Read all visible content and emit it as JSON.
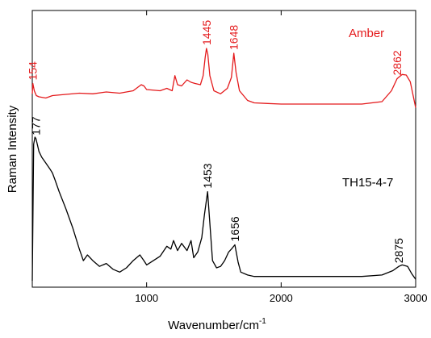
{
  "chart_data": {
    "type": "line",
    "xlabel": "Wavenumber/cm",
    "xlabel_superscript": "-1",
    "ylabel": "Raman Intensity",
    "xlim": [
      150,
      3000
    ],
    "xticks": [
      1000,
      2000,
      3000
    ],
    "xtick_labels": [
      "1000",
      "2000",
      "3000"
    ],
    "y_ticks_shown": false,
    "grid": false,
    "colors": {
      "Amber": "#e41a1c",
      "TH15-4-7": "#000000"
    },
    "series": [
      {
        "name": "Amber",
        "color": "#e41a1c",
        "label_position": "top-right",
        "y_unit": "a.u.",
        "x": [
          150,
          154,
          165,
          180,
          200,
          250,
          300,
          400,
          500,
          600,
          700,
          800,
          900,
          960,
          980,
          1000,
          1100,
          1150,
          1190,
          1210,
          1230,
          1260,
          1300,
          1330,
          1360,
          1400,
          1420,
          1435,
          1445,
          1455,
          1470,
          1500,
          1550,
          1600,
          1630,
          1648,
          1665,
          1690,
          1750,
          1800,
          1900,
          2000,
          2200,
          2400,
          2600,
          2750,
          2820,
          2862,
          2900,
          2930,
          2960,
          3000
        ],
        "y": [
          0.25,
          0.42,
          0.3,
          0.22,
          0.2,
          0.18,
          0.22,
          0.24,
          0.26,
          0.25,
          0.28,
          0.26,
          0.3,
          0.4,
          0.38,
          0.32,
          0.3,
          0.34,
          0.3,
          0.55,
          0.4,
          0.38,
          0.48,
          0.44,
          0.42,
          0.4,
          0.55,
          0.85,
          1.0,
          0.9,
          0.55,
          0.3,
          0.25,
          0.34,
          0.52,
          0.92,
          0.6,
          0.3,
          0.14,
          0.1,
          0.09,
          0.08,
          0.08,
          0.08,
          0.08,
          0.12,
          0.3,
          0.5,
          0.57,
          0.56,
          0.45,
          0.02
        ]
      },
      {
        "name": "TH15-4-7",
        "color": "#000000",
        "label_position": "middle-right",
        "y_unit": "a.u.",
        "x": [
          150,
          160,
          170,
          177,
          185,
          200,
          220,
          250,
          280,
          300,
          320,
          350,
          400,
          450,
          500,
          530,
          560,
          600,
          650,
          700,
          750,
          800,
          850,
          900,
          950,
          980,
          1000,
          1050,
          1100,
          1150,
          1180,
          1200,
          1230,
          1260,
          1300,
          1330,
          1350,
          1380,
          1410,
          1430,
          1453,
          1470,
          1490,
          1520,
          1550,
          1580,
          1610,
          1630,
          1656,
          1680,
          1700,
          1750,
          1800,
          1900,
          2000,
          2200,
          2400,
          2600,
          2750,
          2830,
          2875,
          2900,
          2940,
          2970,
          3000
        ],
        "y": [
          0.0,
          0.95,
          1.0,
          0.99,
          0.96,
          0.9,
          0.86,
          0.82,
          0.78,
          0.75,
          0.7,
          0.62,
          0.5,
          0.37,
          0.22,
          0.14,
          0.18,
          0.14,
          0.1,
          0.12,
          0.08,
          0.06,
          0.09,
          0.14,
          0.18,
          0.14,
          0.11,
          0.14,
          0.17,
          0.24,
          0.22,
          0.28,
          0.21,
          0.26,
          0.21,
          0.28,
          0.16,
          0.2,
          0.3,
          0.46,
          0.62,
          0.4,
          0.14,
          0.09,
          0.1,
          0.14,
          0.2,
          0.22,
          0.25,
          0.13,
          0.06,
          0.04,
          0.03,
          0.03,
          0.03,
          0.03,
          0.03,
          0.03,
          0.04,
          0.07,
          0.1,
          0.11,
          0.1,
          0.05,
          0.01
        ]
      }
    ],
    "annotations": [
      {
        "series": "Amber",
        "x": 154,
        "text": "154",
        "color": "#e41a1c"
      },
      {
        "series": "Amber",
        "x": 1445,
        "text": "1445",
        "color": "#e41a1c"
      },
      {
        "series": "Amber",
        "x": 1648,
        "text": "1648",
        "color": "#e41a1c"
      },
      {
        "series": "Amber",
        "x": 2862,
        "text": "2862",
        "color": "#e41a1c"
      },
      {
        "series": "TH15-4-7",
        "x": 177,
        "text": "177",
        "color": "#000000"
      },
      {
        "series": "TH15-4-7",
        "x": 1453,
        "text": "1453",
        "color": "#000000"
      },
      {
        "series": "TH15-4-7",
        "x": 1656,
        "text": "1656",
        "color": "#000000"
      },
      {
        "series": "TH15-4-7",
        "x": 2875,
        "text": "2875",
        "color": "#000000"
      }
    ]
  }
}
